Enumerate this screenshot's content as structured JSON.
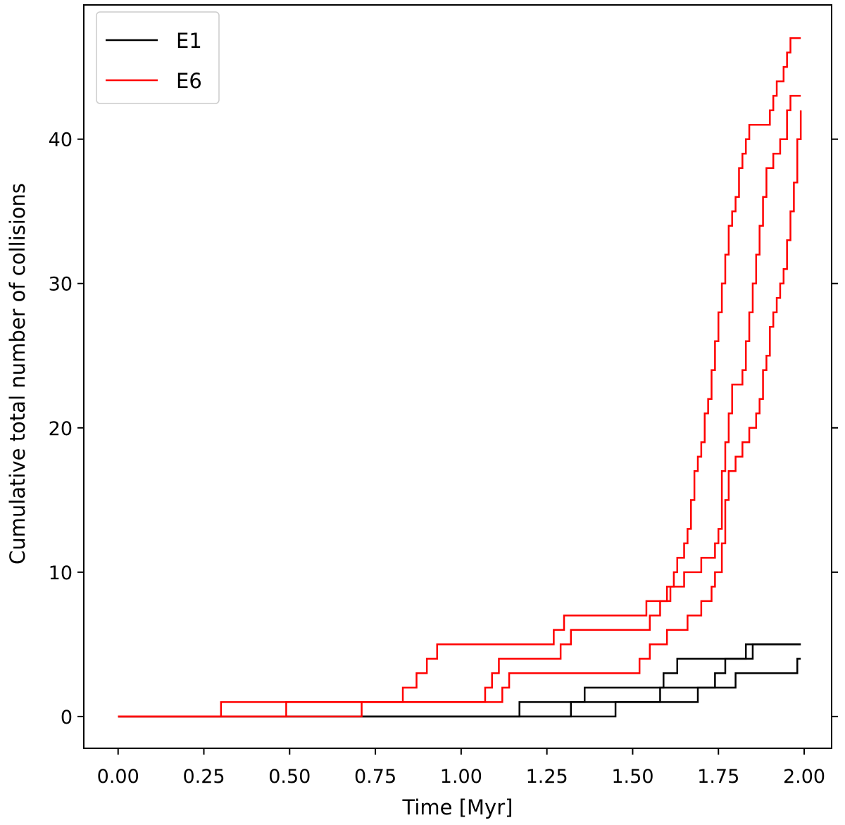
{
  "chart_data": {
    "type": "line",
    "step": true,
    "xlabel": "Time [Myr]",
    "ylabel": "Cumulative total number of collisions",
    "xlim": [
      -0.1,
      2.08
    ],
    "ylim": [
      -2.2,
      49.3
    ],
    "xticks": [
      "0.00",
      "0.25",
      "0.50",
      "0.75",
      "1.00",
      "1.25",
      "1.50",
      "1.75",
      "2.00"
    ],
    "yticks": [
      "0",
      "10",
      "20",
      "30",
      "40"
    ],
    "grid": false,
    "ticks_on_right": true,
    "legend_position": "top-left",
    "legend": [
      {
        "label": "E1",
        "color": "#000000"
      },
      {
        "label": "E6",
        "color": "#ff0000"
      }
    ],
    "series": [
      {
        "group": "E1",
        "color": "#000000",
        "points": [
          [
            0.0,
            0
          ],
          [
            1.17,
            0
          ],
          [
            1.17,
            1
          ],
          [
            1.36,
            1
          ],
          [
            1.36,
            2
          ],
          [
            1.59,
            2
          ],
          [
            1.59,
            3
          ],
          [
            1.63,
            3
          ],
          [
            1.63,
            4
          ],
          [
            1.83,
            4
          ],
          [
            1.83,
            5
          ],
          [
            1.99,
            5
          ]
        ]
      },
      {
        "group": "E1",
        "color": "#000000",
        "points": [
          [
            0.0,
            0
          ],
          [
            1.32,
            0
          ],
          [
            1.32,
            1
          ],
          [
            1.58,
            1
          ],
          [
            1.58,
            2
          ],
          [
            1.74,
            2
          ],
          [
            1.74,
            3
          ],
          [
            1.77,
            3
          ],
          [
            1.77,
            4
          ],
          [
            1.85,
            4
          ],
          [
            1.85,
            5
          ],
          [
            1.99,
            5
          ]
        ]
      },
      {
        "group": "E1",
        "color": "#000000",
        "points": [
          [
            0.0,
            0
          ],
          [
            1.45,
            0
          ],
          [
            1.45,
            1
          ],
          [
            1.69,
            1
          ],
          [
            1.69,
            2
          ],
          [
            1.8,
            2
          ],
          [
            1.8,
            3
          ],
          [
            1.98,
            3
          ],
          [
            1.98,
            4
          ],
          [
            1.99,
            4
          ]
        ]
      },
      {
        "group": "E6",
        "color": "#ff0000",
        "points": [
          [
            0.0,
            0
          ],
          [
            0.3,
            0
          ],
          [
            0.3,
            1
          ],
          [
            0.83,
            1
          ],
          [
            0.83,
            2
          ],
          [
            0.87,
            2
          ],
          [
            0.87,
            3
          ],
          [
            0.9,
            3
          ],
          [
            0.9,
            4
          ],
          [
            0.93,
            4
          ],
          [
            0.93,
            5
          ],
          [
            1.27,
            5
          ],
          [
            1.27,
            6
          ],
          [
            1.3,
            6
          ],
          [
            1.3,
            7
          ],
          [
            1.54,
            7
          ],
          [
            1.54,
            8
          ],
          [
            1.6,
            8
          ],
          [
            1.6,
            9
          ],
          [
            1.62,
            9
          ],
          [
            1.62,
            10
          ],
          [
            1.63,
            10
          ],
          [
            1.63,
            11
          ],
          [
            1.65,
            11
          ],
          [
            1.65,
            12
          ],
          [
            1.66,
            12
          ],
          [
            1.66,
            13
          ],
          [
            1.67,
            13
          ],
          [
            1.67,
            15
          ],
          [
            1.68,
            15
          ],
          [
            1.68,
            17
          ],
          [
            1.69,
            17
          ],
          [
            1.69,
            18
          ],
          [
            1.7,
            18
          ],
          [
            1.7,
            19
          ],
          [
            1.71,
            19
          ],
          [
            1.71,
            21
          ],
          [
            1.72,
            21
          ],
          [
            1.72,
            22
          ],
          [
            1.73,
            22
          ],
          [
            1.73,
            24
          ],
          [
            1.74,
            24
          ],
          [
            1.74,
            26
          ],
          [
            1.75,
            26
          ],
          [
            1.75,
            28
          ],
          [
            1.76,
            28
          ],
          [
            1.76,
            30
          ],
          [
            1.77,
            30
          ],
          [
            1.77,
            32
          ],
          [
            1.78,
            32
          ],
          [
            1.78,
            34
          ],
          [
            1.79,
            34
          ],
          [
            1.79,
            35
          ],
          [
            1.8,
            35
          ],
          [
            1.8,
            36
          ],
          [
            1.81,
            36
          ],
          [
            1.81,
            38
          ],
          [
            1.82,
            38
          ],
          [
            1.82,
            39
          ],
          [
            1.83,
            39
          ],
          [
            1.83,
            40
          ],
          [
            1.84,
            40
          ],
          [
            1.84,
            41
          ],
          [
            1.9,
            41
          ],
          [
            1.9,
            42
          ],
          [
            1.91,
            42
          ],
          [
            1.91,
            43
          ],
          [
            1.92,
            43
          ],
          [
            1.92,
            44
          ],
          [
            1.94,
            44
          ],
          [
            1.94,
            45
          ],
          [
            1.95,
            45
          ],
          [
            1.95,
            46
          ],
          [
            1.96,
            46
          ],
          [
            1.96,
            47
          ],
          [
            1.99,
            47
          ]
        ]
      },
      {
        "group": "E6",
        "color": "#ff0000",
        "points": [
          [
            0.0,
            0
          ],
          [
            0.49,
            0
          ],
          [
            0.49,
            1
          ],
          [
            1.07,
            1
          ],
          [
            1.07,
            2
          ],
          [
            1.09,
            2
          ],
          [
            1.09,
            3
          ],
          [
            1.11,
            3
          ],
          [
            1.11,
            4
          ],
          [
            1.29,
            4
          ],
          [
            1.29,
            5
          ],
          [
            1.32,
            5
          ],
          [
            1.32,
            6
          ],
          [
            1.55,
            6
          ],
          [
            1.55,
            7
          ],
          [
            1.58,
            7
          ],
          [
            1.58,
            8
          ],
          [
            1.61,
            8
          ],
          [
            1.61,
            9
          ],
          [
            1.65,
            9
          ],
          [
            1.65,
            10
          ],
          [
            1.7,
            10
          ],
          [
            1.7,
            11
          ],
          [
            1.74,
            11
          ],
          [
            1.74,
            12
          ],
          [
            1.75,
            12
          ],
          [
            1.75,
            13
          ],
          [
            1.76,
            13
          ],
          [
            1.76,
            17
          ],
          [
            1.77,
            17
          ],
          [
            1.77,
            19
          ],
          [
            1.78,
            19
          ],
          [
            1.78,
            21
          ],
          [
            1.79,
            21
          ],
          [
            1.79,
            23
          ],
          [
            1.82,
            23
          ],
          [
            1.82,
            24
          ],
          [
            1.83,
            24
          ],
          [
            1.83,
            26
          ],
          [
            1.84,
            26
          ],
          [
            1.84,
            28
          ],
          [
            1.85,
            28
          ],
          [
            1.85,
            30
          ],
          [
            1.86,
            30
          ],
          [
            1.86,
            32
          ],
          [
            1.87,
            32
          ],
          [
            1.87,
            34
          ],
          [
            1.88,
            34
          ],
          [
            1.88,
            36
          ],
          [
            1.89,
            36
          ],
          [
            1.89,
            38
          ],
          [
            1.91,
            38
          ],
          [
            1.91,
            39
          ],
          [
            1.93,
            39
          ],
          [
            1.93,
            40
          ],
          [
            1.95,
            40
          ],
          [
            1.95,
            42
          ],
          [
            1.96,
            42
          ],
          [
            1.96,
            43
          ],
          [
            1.99,
            43
          ]
        ]
      },
      {
        "group": "E6",
        "color": "#ff0000",
        "points": [
          [
            0.0,
            0
          ],
          [
            0.71,
            0
          ],
          [
            0.71,
            1
          ],
          [
            1.12,
            1
          ],
          [
            1.12,
            2
          ],
          [
            1.14,
            2
          ],
          [
            1.14,
            3
          ],
          [
            1.52,
            3
          ],
          [
            1.52,
            4
          ],
          [
            1.55,
            4
          ],
          [
            1.55,
            5
          ],
          [
            1.6,
            5
          ],
          [
            1.6,
            6
          ],
          [
            1.66,
            6
          ],
          [
            1.66,
            7
          ],
          [
            1.7,
            7
          ],
          [
            1.7,
            8
          ],
          [
            1.73,
            8
          ],
          [
            1.73,
            9
          ],
          [
            1.74,
            9
          ],
          [
            1.74,
            10
          ],
          [
            1.76,
            10
          ],
          [
            1.76,
            12
          ],
          [
            1.77,
            12
          ],
          [
            1.77,
            15
          ],
          [
            1.78,
            15
          ],
          [
            1.78,
            17
          ],
          [
            1.8,
            17
          ],
          [
            1.8,
            18
          ],
          [
            1.82,
            18
          ],
          [
            1.82,
            19
          ],
          [
            1.84,
            19
          ],
          [
            1.84,
            20
          ],
          [
            1.86,
            20
          ],
          [
            1.86,
            21
          ],
          [
            1.87,
            21
          ],
          [
            1.87,
            22
          ],
          [
            1.88,
            22
          ],
          [
            1.88,
            24
          ],
          [
            1.89,
            24
          ],
          [
            1.89,
            25
          ],
          [
            1.9,
            25
          ],
          [
            1.9,
            27
          ],
          [
            1.91,
            27
          ],
          [
            1.91,
            28
          ],
          [
            1.92,
            28
          ],
          [
            1.92,
            29
          ],
          [
            1.93,
            29
          ],
          [
            1.93,
            30
          ],
          [
            1.94,
            30
          ],
          [
            1.94,
            31
          ],
          [
            1.95,
            31
          ],
          [
            1.95,
            33
          ],
          [
            1.96,
            33
          ],
          [
            1.96,
            35
          ],
          [
            1.97,
            35
          ],
          [
            1.97,
            37
          ],
          [
            1.98,
            37
          ],
          [
            1.98,
            40
          ],
          [
            1.99,
            40
          ],
          [
            1.99,
            42
          ]
        ]
      }
    ]
  }
}
